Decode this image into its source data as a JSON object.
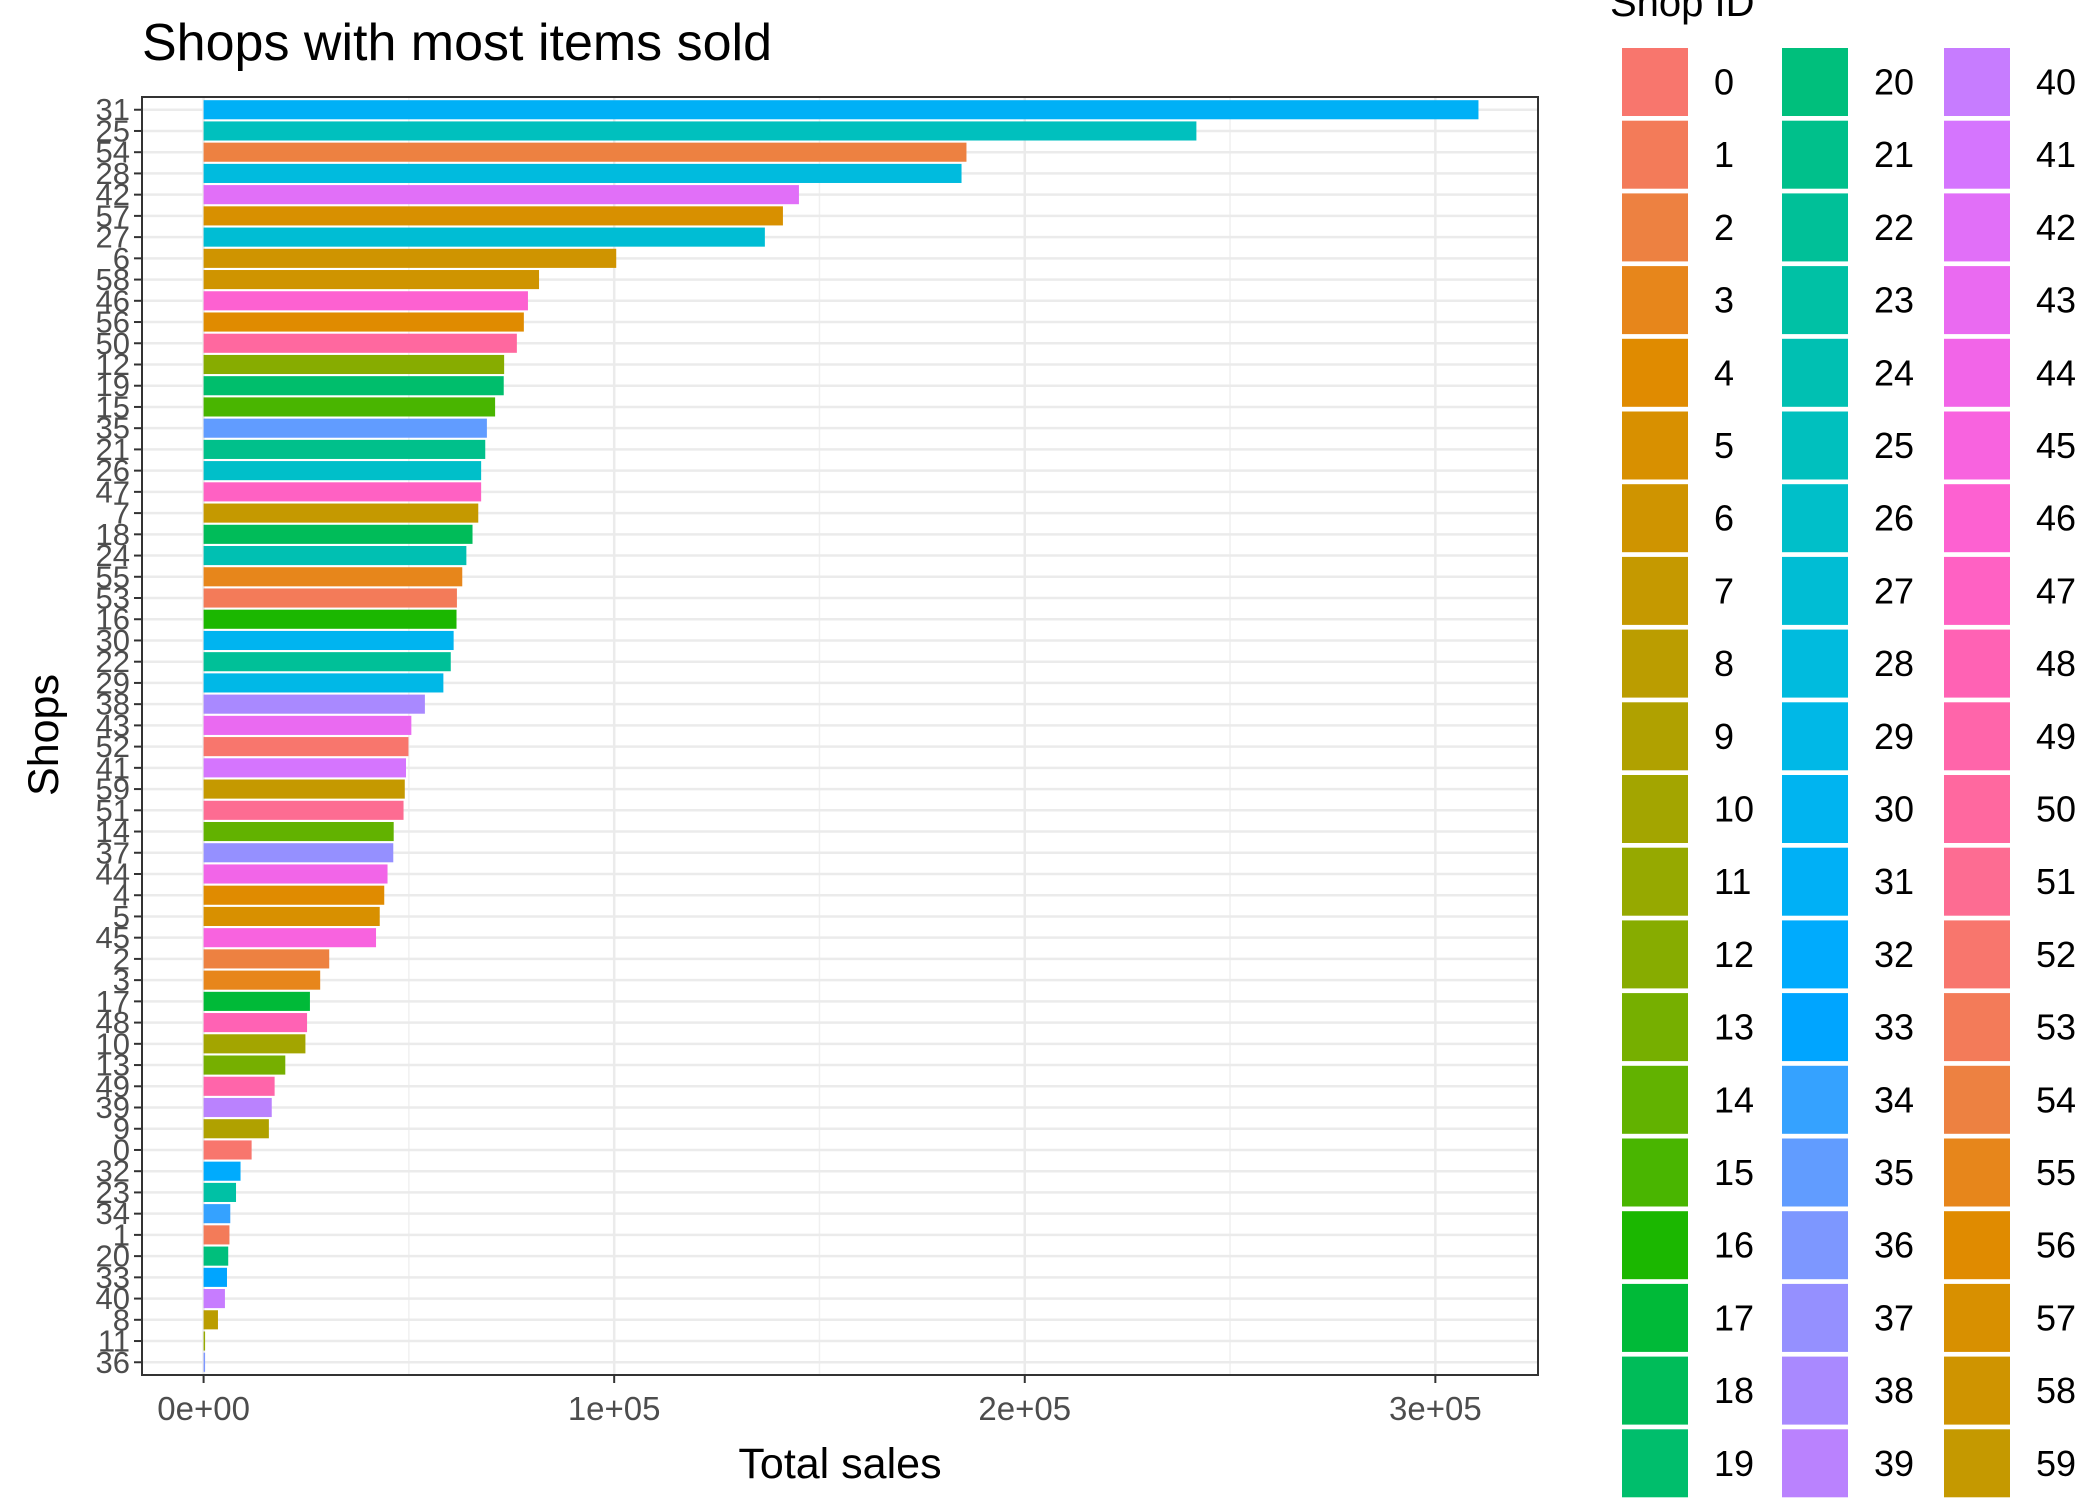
{
  "chart_data": {
    "type": "bar",
    "orientation": "horizontal",
    "title": "Shops with most items sold",
    "xlabel": "Total sales",
    "ylabel": "Shops",
    "xlim": [
      -15000,
      325000
    ],
    "x_ticks": [
      {
        "value": 0,
        "label": "0e+00"
      },
      {
        "value": 100000,
        "label": "1e+05"
      },
      {
        "value": 200000,
        "label": "2e+05"
      },
      {
        "value": 300000,
        "label": "3e+05"
      }
    ],
    "grid": true,
    "legend": {
      "title": "Shop ID",
      "position": "right",
      "columns": 3,
      "entries": [
        "0",
        "1",
        "2",
        "3",
        "4",
        "5",
        "6",
        "7",
        "8",
        "9",
        "10",
        "11",
        "12",
        "13",
        "14",
        "15",
        "16",
        "17",
        "18",
        "19",
        "20",
        "21",
        "22",
        "23",
        "24",
        "25",
        "26",
        "27",
        "28",
        "29",
        "30",
        "31",
        "32",
        "33",
        "34",
        "35",
        "36",
        "37",
        "38",
        "39",
        "40",
        "41",
        "42",
        "43",
        "44",
        "45",
        "46",
        "47",
        "48",
        "49",
        "50",
        "51",
        "52",
        "53",
        "54",
        "55",
        "56",
        "57",
        "58",
        "59"
      ]
    },
    "categories": [
      "31",
      "25",
      "54",
      "28",
      "42",
      "57",
      "27",
      "6",
      "58",
      "46",
      "56",
      "50",
      "12",
      "19",
      "15",
      "35",
      "21",
      "26",
      "47",
      "7",
      "18",
      "24",
      "55",
      "53",
      "16",
      "30",
      "22",
      "29",
      "38",
      "43",
      "52",
      "41",
      "59",
      "51",
      "14",
      "37",
      "44",
      "4",
      "5",
      "45",
      "2",
      "3",
      "17",
      "48",
      "10",
      "13",
      "49",
      "39",
      "9",
      "0",
      "32",
      "23",
      "34",
      "1",
      "20",
      "33",
      "40",
      "8",
      "11",
      "36"
    ],
    "values": [
      310500,
      241800,
      185800,
      184600,
      145000,
      141100,
      136700,
      100500,
      81700,
      79000,
      78000,
      76300,
      73200,
      73100,
      71000,
      69000,
      68600,
      67600,
      67600,
      66900,
      65500,
      64000,
      63000,
      61700,
      61600,
      60900,
      60200,
      58400,
      53900,
      50600,
      49900,
      49300,
      49000,
      48700,
      46300,
      46200,
      44800,
      44000,
      42900,
      42000,
      30600,
      28400,
      25900,
      25200,
      24800,
      19900,
      17300,
      16600,
      15900,
      11700,
      9000,
      7900,
      6500,
      6300,
      6000,
      5700,
      5200,
      3500,
      330,
      300
    ],
    "colors": {
      "0": "#F8766D",
      "1": "#F37B59",
      "2": "#ED8141",
      "3": "#E7861B",
      "4": "#E08B00",
      "5": "#D89000",
      "6": "#CF9400",
      "7": "#C59900",
      "8": "#BB9D00",
      "9": "#B0A100",
      "10": "#A3A500",
      "11": "#96A900",
      "12": "#87AC00",
      "13": "#76AF00",
      "14": "#62B200",
      "15": "#49B500",
      "16": "#1BB700",
      "17": "#00BA38",
      "18": "#00BC59",
      "19": "#00BE6C",
      "20": "#00BF7C",
      "21": "#00C08B",
      "22": "#00C098",
      "23": "#00C1A5",
      "24": "#00C0B2",
      "25": "#00C0BE",
      "26": "#00BFC9",
      "27": "#00BDD4",
      "28": "#00BBDE",
      "29": "#00B8E7",
      "30": "#00B4F0",
      "31": "#00B0F6",
      "32": "#00ABFD",
      "33": "#00A5FF",
      "34": "#35A2FF",
      "35": "#619CFF",
      "36": "#7D97FF",
      "37": "#9590FF",
      "38": "#A989FF",
      "39": "#BA82FE",
      "40": "#C77CFF",
      "41": "#D575FE",
      "42": "#E16FF8",
      "43": "#EA6AF1",
      "44": "#F265E8",
      "45": "#F863DF",
      "46": "#FD61D1",
      "47": "#FF61C3",
      "48": "#FF62B4",
      "49": "#FF65AA",
      "50": "#FF689F",
      "51": "#FD6C92",
      "52": "#F8766D",
      "53": "#F37B59",
      "54": "#ED8141",
      "55": "#E7861B",
      "56": "#E08B00",
      "57": "#D89000",
      "58": "#CF9400",
      "59": "#C59900"
    }
  }
}
